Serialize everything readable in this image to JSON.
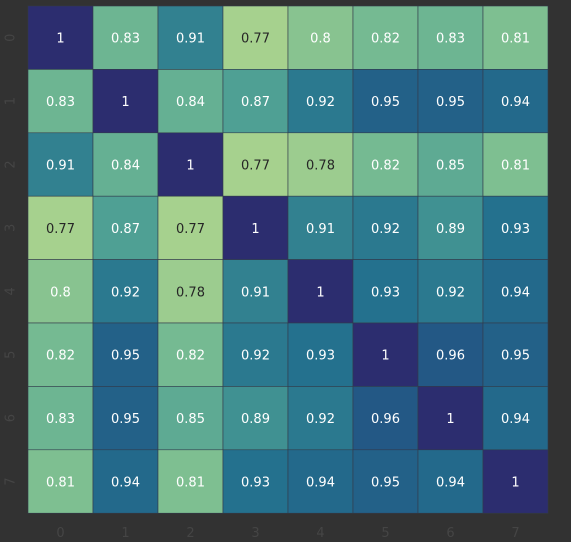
{
  "chart_data": {
    "type": "heatmap",
    "title": "",
    "xlabel": "",
    "ylabel": "",
    "x_tick_labels": [
      "0",
      "1",
      "2",
      "3",
      "4",
      "5",
      "6",
      "7"
    ],
    "y_tick_labels": [
      "0",
      "1",
      "2",
      "3",
      "4",
      "5",
      "6",
      "7"
    ],
    "values": [
      [
        1,
        0.83,
        0.91,
        0.77,
        0.8,
        0.82,
        0.83,
        0.81
      ],
      [
        0.83,
        1,
        0.84,
        0.87,
        0.92,
        0.95,
        0.95,
        0.94
      ],
      [
        0.91,
        0.84,
        1,
        0.77,
        0.78,
        0.82,
        0.85,
        0.81
      ],
      [
        0.77,
        0.87,
        0.77,
        1,
        0.91,
        0.92,
        0.89,
        0.93
      ],
      [
        0.8,
        0.92,
        0.78,
        0.91,
        1,
        0.93,
        0.92,
        0.94
      ],
      [
        0.82,
        0.95,
        0.82,
        0.92,
        0.93,
        1,
        0.96,
        0.95
      ],
      [
        0.83,
        0.95,
        0.85,
        0.89,
        0.92,
        0.96,
        1,
        0.94
      ],
      [
        0.81,
        0.94,
        0.81,
        0.93,
        0.94,
        0.95,
        0.94,
        1
      ]
    ],
    "colorscale": "crest",
    "vmin": 0.77,
    "vmax": 1,
    "colors": {
      "background": "#323232",
      "tick_text": "#454545",
      "cell_border": "#323a4a",
      "low": "#a6d18e",
      "high": "#2c2d6f"
    }
  }
}
